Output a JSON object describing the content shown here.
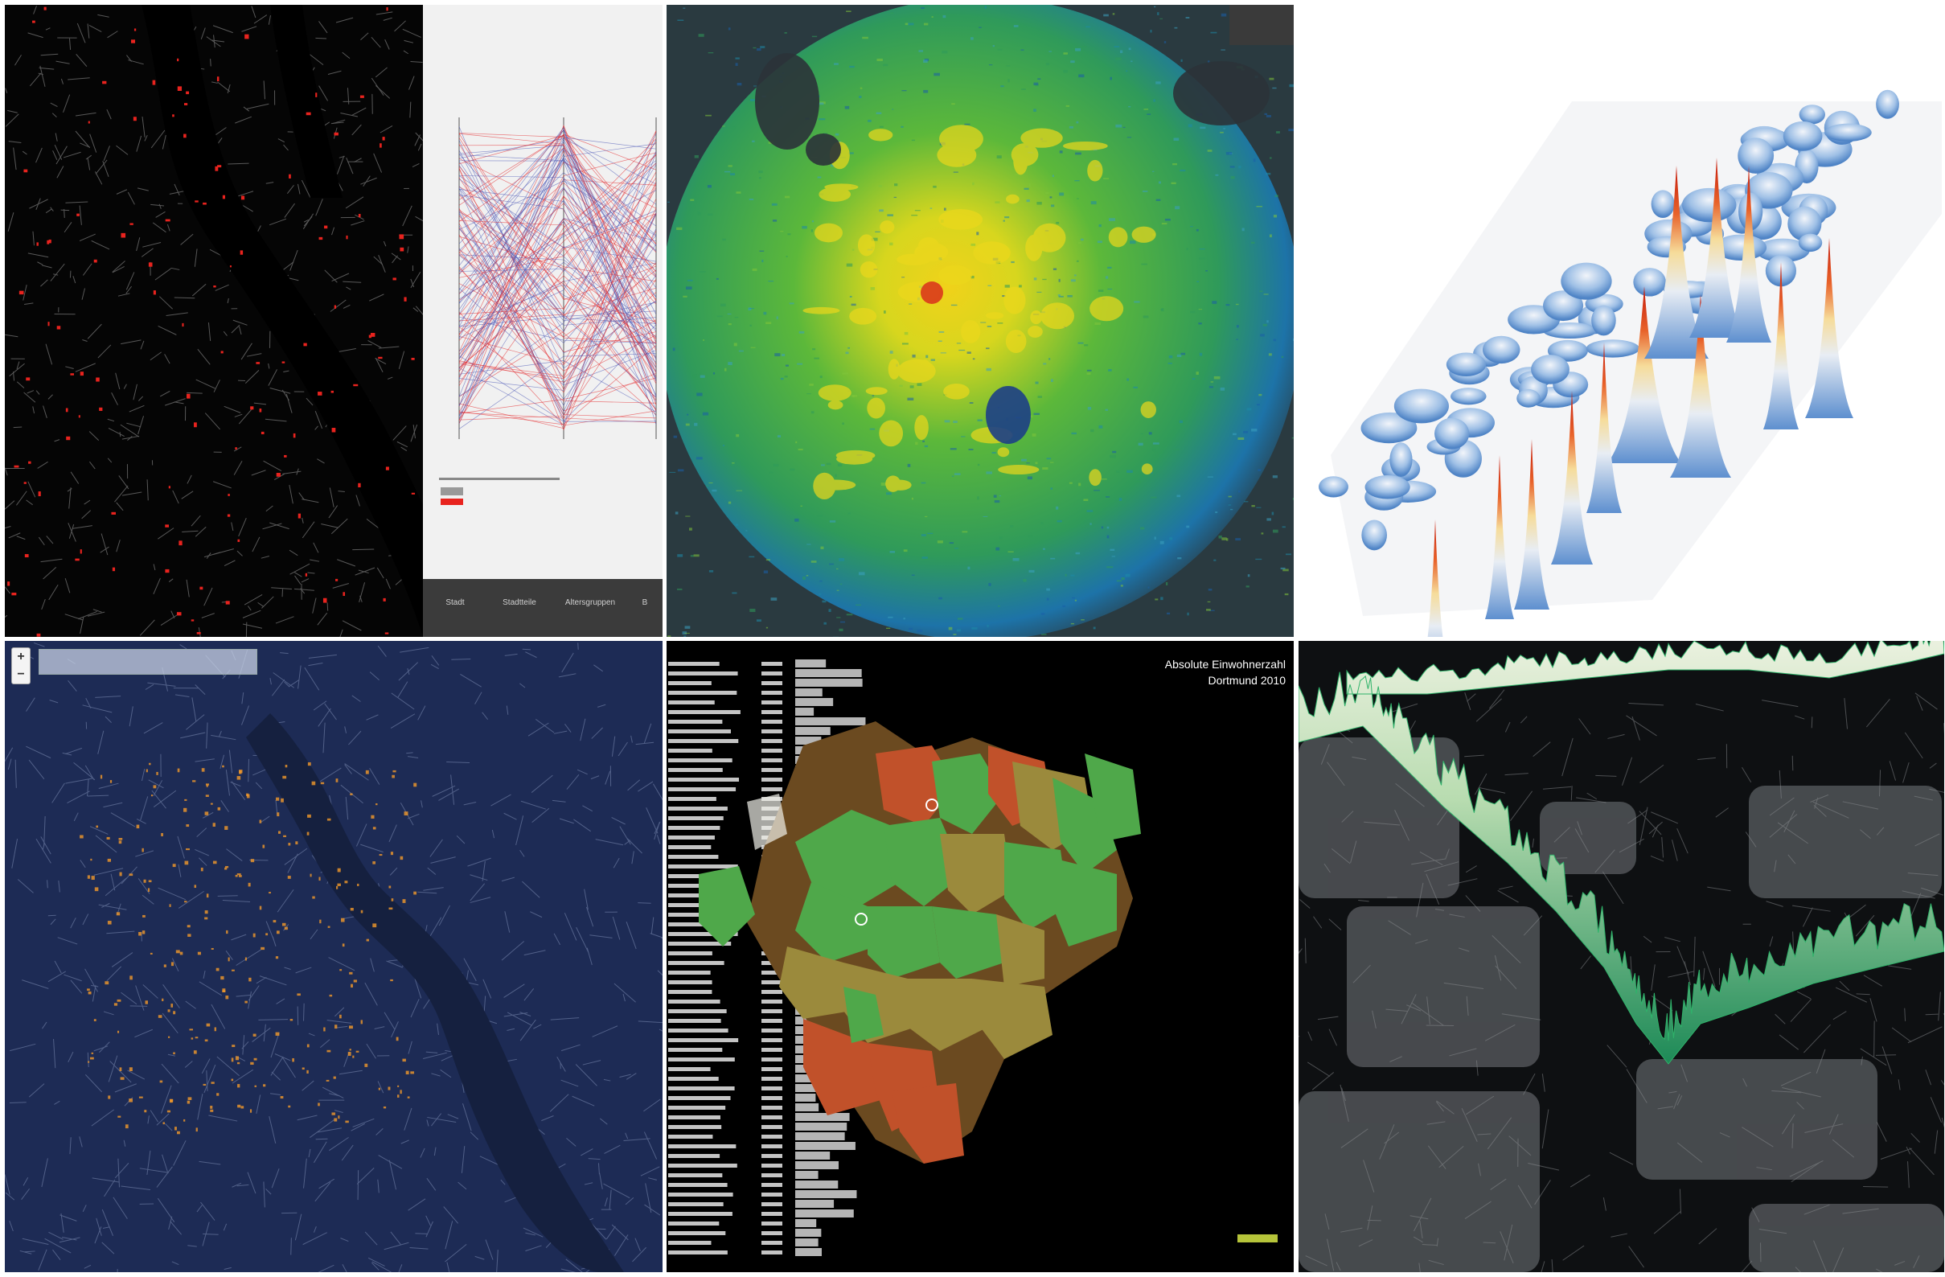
{
  "collage": {
    "panels": [
      {
        "id": "p1",
        "name": "bonn-street-network-parallel-coordinates",
        "colors": {
          "background": "#050505",
          "streets": "#9a9a9a",
          "highlight": "#e8231e"
        }
      },
      {
        "id": "p2",
        "name": "berlin-density-heatmap",
        "colors": {
          "low": "#1a3a8a",
          "mid": "#3fae3a",
          "high": "#e8e21e",
          "peak": "#d8261c"
        }
      },
      {
        "id": "p3",
        "name": "3d-density-peaks",
        "colors": {
          "base": "#6f9fd6",
          "mid": "#f4e3b0",
          "peak": "#cc1a0c"
        }
      },
      {
        "id": "p4",
        "name": "bonn-street-activity-map",
        "colors": {
          "background": "#1d2b55",
          "streets": "#8a97b8",
          "activity": "#f39a2a",
          "river": "#15203f"
        }
      },
      {
        "id": "p5",
        "name": "dortmund-3d-district-map",
        "colors": {
          "green": "#4fa84a",
          "olive": "#9b8a3c",
          "rust": "#c1512a"
        }
      },
      {
        "id": "p6",
        "name": "3d-route-profile-dark-map",
        "colors": {
          "background": "#101214",
          "profile": "#3fbf7a",
          "profile-light": "#e8f0dc"
        }
      }
    ]
  },
  "panel1": {
    "tabs": [
      "Stadt",
      "Stadtteile",
      "Altersgruppen",
      "B"
    ]
  },
  "panel4": {
    "zoom_in": "+",
    "zoom_out": "−",
    "search_placeholder": ""
  },
  "panel5": {
    "title_line1": "Absolute Einwohnerzahl",
    "title_line2": "Dortmund 2010"
  }
}
